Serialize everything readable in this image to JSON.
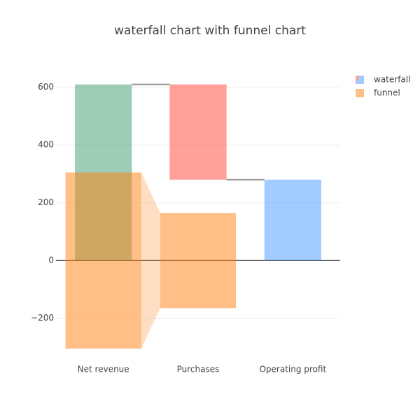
{
  "chart_data": {
    "type": "waterfall",
    "title": "waterfall chart with funnel chart",
    "categories": [
      "Net revenue",
      "Purchases",
      "Operating profit"
    ],
    "ylim": [
      -305,
      660
    ],
    "yticks": [
      {
        "value": -200,
        "label": "−200"
      },
      0,
      200,
      400,
      600
    ],
    "grid": true,
    "legend": "top-right",
    "series": [
      {
        "name": "waterfall",
        "type": "waterfall",
        "measure": [
          "absolute",
          "relative",
          "total"
        ],
        "values": [
          610,
          -330,
          280
        ],
        "colors": {
          "increasing": "#3d9970",
          "decreasing": "#ff4136",
          "totals": "#4499ff"
        },
        "connector_color": "#999999"
      },
      {
        "name": "funnel",
        "type": "funnel",
        "values": [
          610,
          330,
          null
        ],
        "color": "#ff7f0e"
      }
    ]
  }
}
